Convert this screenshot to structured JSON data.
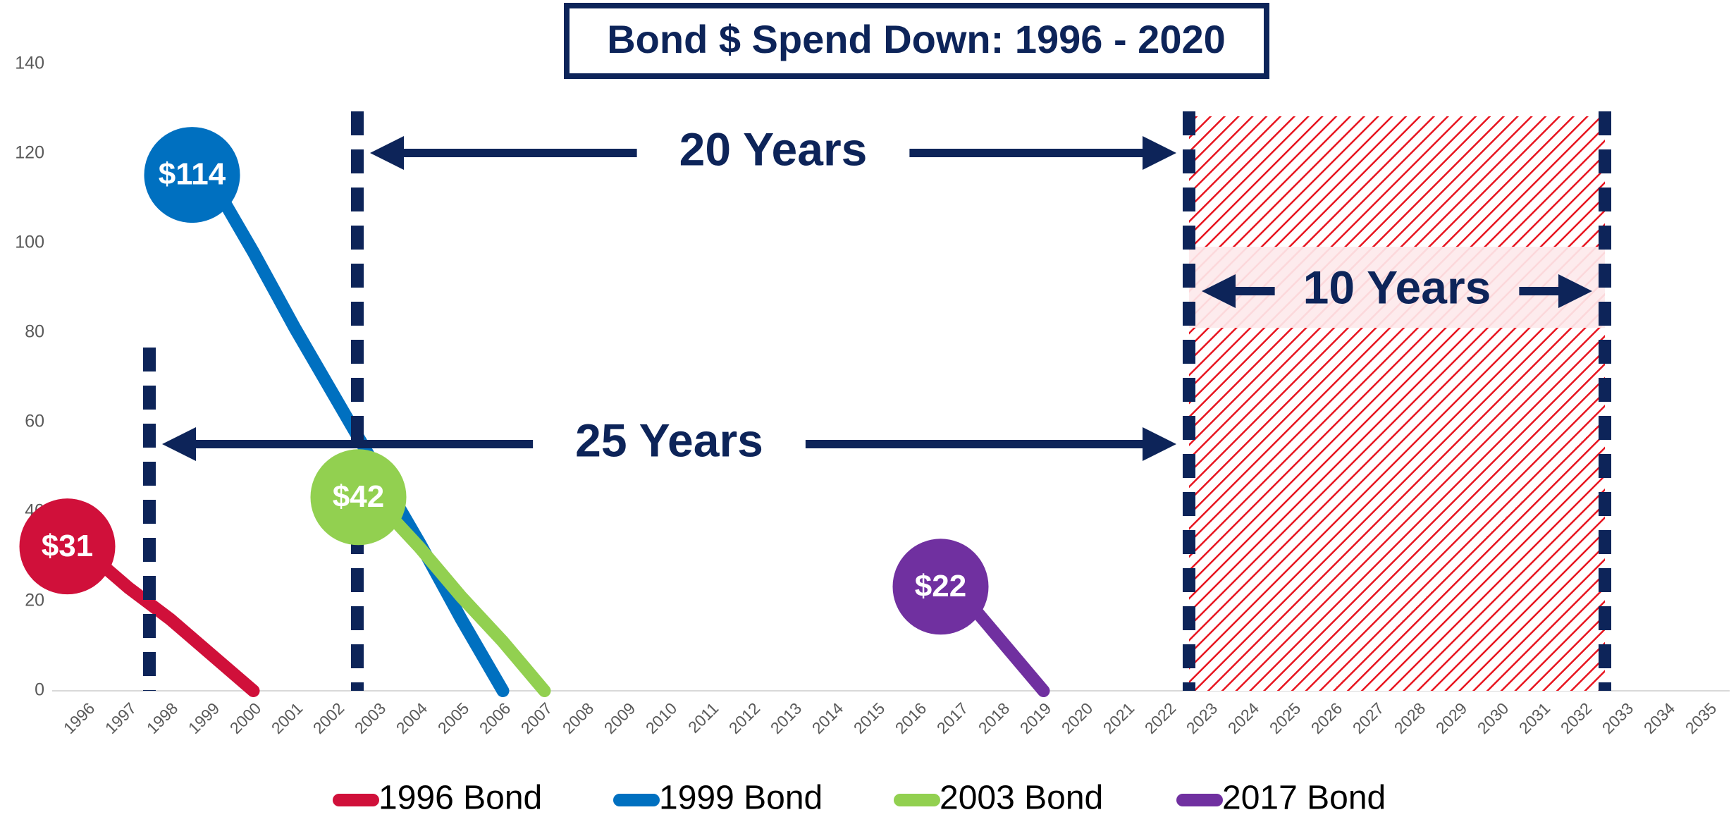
{
  "chart_data": {
    "type": "line",
    "title": "Bond $ Spend Down: 1996 - 2020",
    "categories": [
      "1996",
      "1997",
      "1998",
      "1999",
      "2000",
      "2001",
      "2002",
      "2003",
      "2004",
      "2005",
      "2006",
      "2007",
      "2008",
      "2009",
      "2010",
      "2011",
      "2012",
      "2013",
      "2014",
      "2015",
      "2016",
      "2017",
      "2018",
      "2019",
      "2020",
      "2021",
      "2022",
      "2023",
      "2024",
      "2025",
      "2026",
      "2027",
      "2028",
      "2029",
      "2030",
      "2031",
      "2032",
      "2033",
      "2034",
      "2035"
    ],
    "ylim": [
      0,
      140
    ],
    "yticks": [
      0,
      20,
      40,
      60,
      80,
      100,
      120,
      140
    ],
    "legend": "bottom",
    "series": [
      {
        "name": "1996 Bond",
        "color": "#d0103a",
        "values": [
          31,
          23,
          16,
          8,
          0,
          null,
          null,
          null,
          null,
          null,
          null,
          null,
          null,
          null,
          null,
          null,
          null,
          null,
          null,
          null,
          null,
          null,
          null,
          null,
          null,
          null,
          null,
          null,
          null,
          null,
          null,
          null,
          null,
          null,
          null,
          null,
          null,
          null,
          null,
          null
        ],
        "value_labels": [
          "$31",
          null,
          null,
          null,
          null,
          null,
          null,
          null,
          null,
          null,
          null,
          null,
          null,
          null,
          null,
          null,
          null,
          null,
          null,
          null,
          null,
          null,
          null,
          null,
          null,
          null,
          null,
          null,
          null,
          null,
          null,
          null,
          null,
          null,
          null,
          null,
          null,
          null,
          null,
          null
        ]
      },
      {
        "name": "1999 Bond",
        "color": "#0070c0",
        "values": [
          null,
          null,
          null,
          114,
          98,
          81,
          65,
          49,
          33,
          16,
          0,
          null,
          null,
          null,
          null,
          null,
          null,
          null,
          null,
          null,
          null,
          null,
          null,
          null,
          null,
          null,
          null,
          null,
          null,
          null,
          null,
          null,
          null,
          null,
          null,
          null,
          null,
          null,
          null,
          null
        ],
        "value_labels": [
          null,
          null,
          null,
          "$114",
          null,
          null,
          null,
          null,
          null,
          null,
          null,
          null,
          null,
          null,
          null,
          null,
          null,
          null,
          null,
          null,
          null,
          null,
          null,
          null,
          null,
          null,
          null,
          null,
          null,
          null,
          null,
          null,
          null,
          null,
          null,
          null,
          null,
          null,
          null,
          null
        ]
      },
      {
        "name": "2003 Bond",
        "color": "#92d050",
        "values": [
          null,
          null,
          null,
          null,
          null,
          null,
          null,
          42,
          32,
          21,
          11,
          0,
          null,
          null,
          null,
          null,
          null,
          null,
          null,
          null,
          null,
          null,
          null,
          null,
          null,
          null,
          null,
          null,
          null,
          null,
          null,
          null,
          null,
          null,
          null,
          null,
          null,
          null,
          null,
          null
        ],
        "value_labels": [
          null,
          null,
          null,
          null,
          null,
          null,
          null,
          "$42",
          null,
          null,
          null,
          null,
          null,
          null,
          null,
          null,
          null,
          null,
          null,
          null,
          null,
          null,
          null,
          null,
          null,
          null,
          null,
          null,
          null,
          null,
          null,
          null,
          null,
          null,
          null,
          null,
          null,
          null,
          null,
          null
        ]
      },
      {
        "name": "2017 Bond",
        "color": "#7030a0",
        "values": [
          null,
          null,
          null,
          null,
          null,
          null,
          null,
          null,
          null,
          null,
          null,
          null,
          null,
          null,
          null,
          null,
          null,
          null,
          null,
          null,
          null,
          22,
          11,
          0,
          null,
          null,
          null,
          null,
          null,
          null,
          null,
          null,
          null,
          null,
          null,
          null,
          null,
          null,
          null,
          null
        ],
        "value_labels": [
          null,
          null,
          null,
          null,
          null,
          null,
          null,
          null,
          null,
          null,
          null,
          null,
          null,
          null,
          null,
          null,
          null,
          null,
          null,
          null,
          null,
          "$22",
          null,
          null,
          null,
          null,
          null,
          null,
          null,
          null,
          null,
          null,
          null,
          null,
          null,
          null,
          null,
          null,
          null,
          null
        ]
      }
    ],
    "annotations": [
      {
        "text": "25 Years",
        "start": "1998",
        "end": "2023"
      },
      {
        "text": "20 Years",
        "start": "2003",
        "end": "2023"
      },
      {
        "text": "10 Years",
        "start": "2023",
        "end": "2033",
        "hatched": true
      }
    ]
  }
}
